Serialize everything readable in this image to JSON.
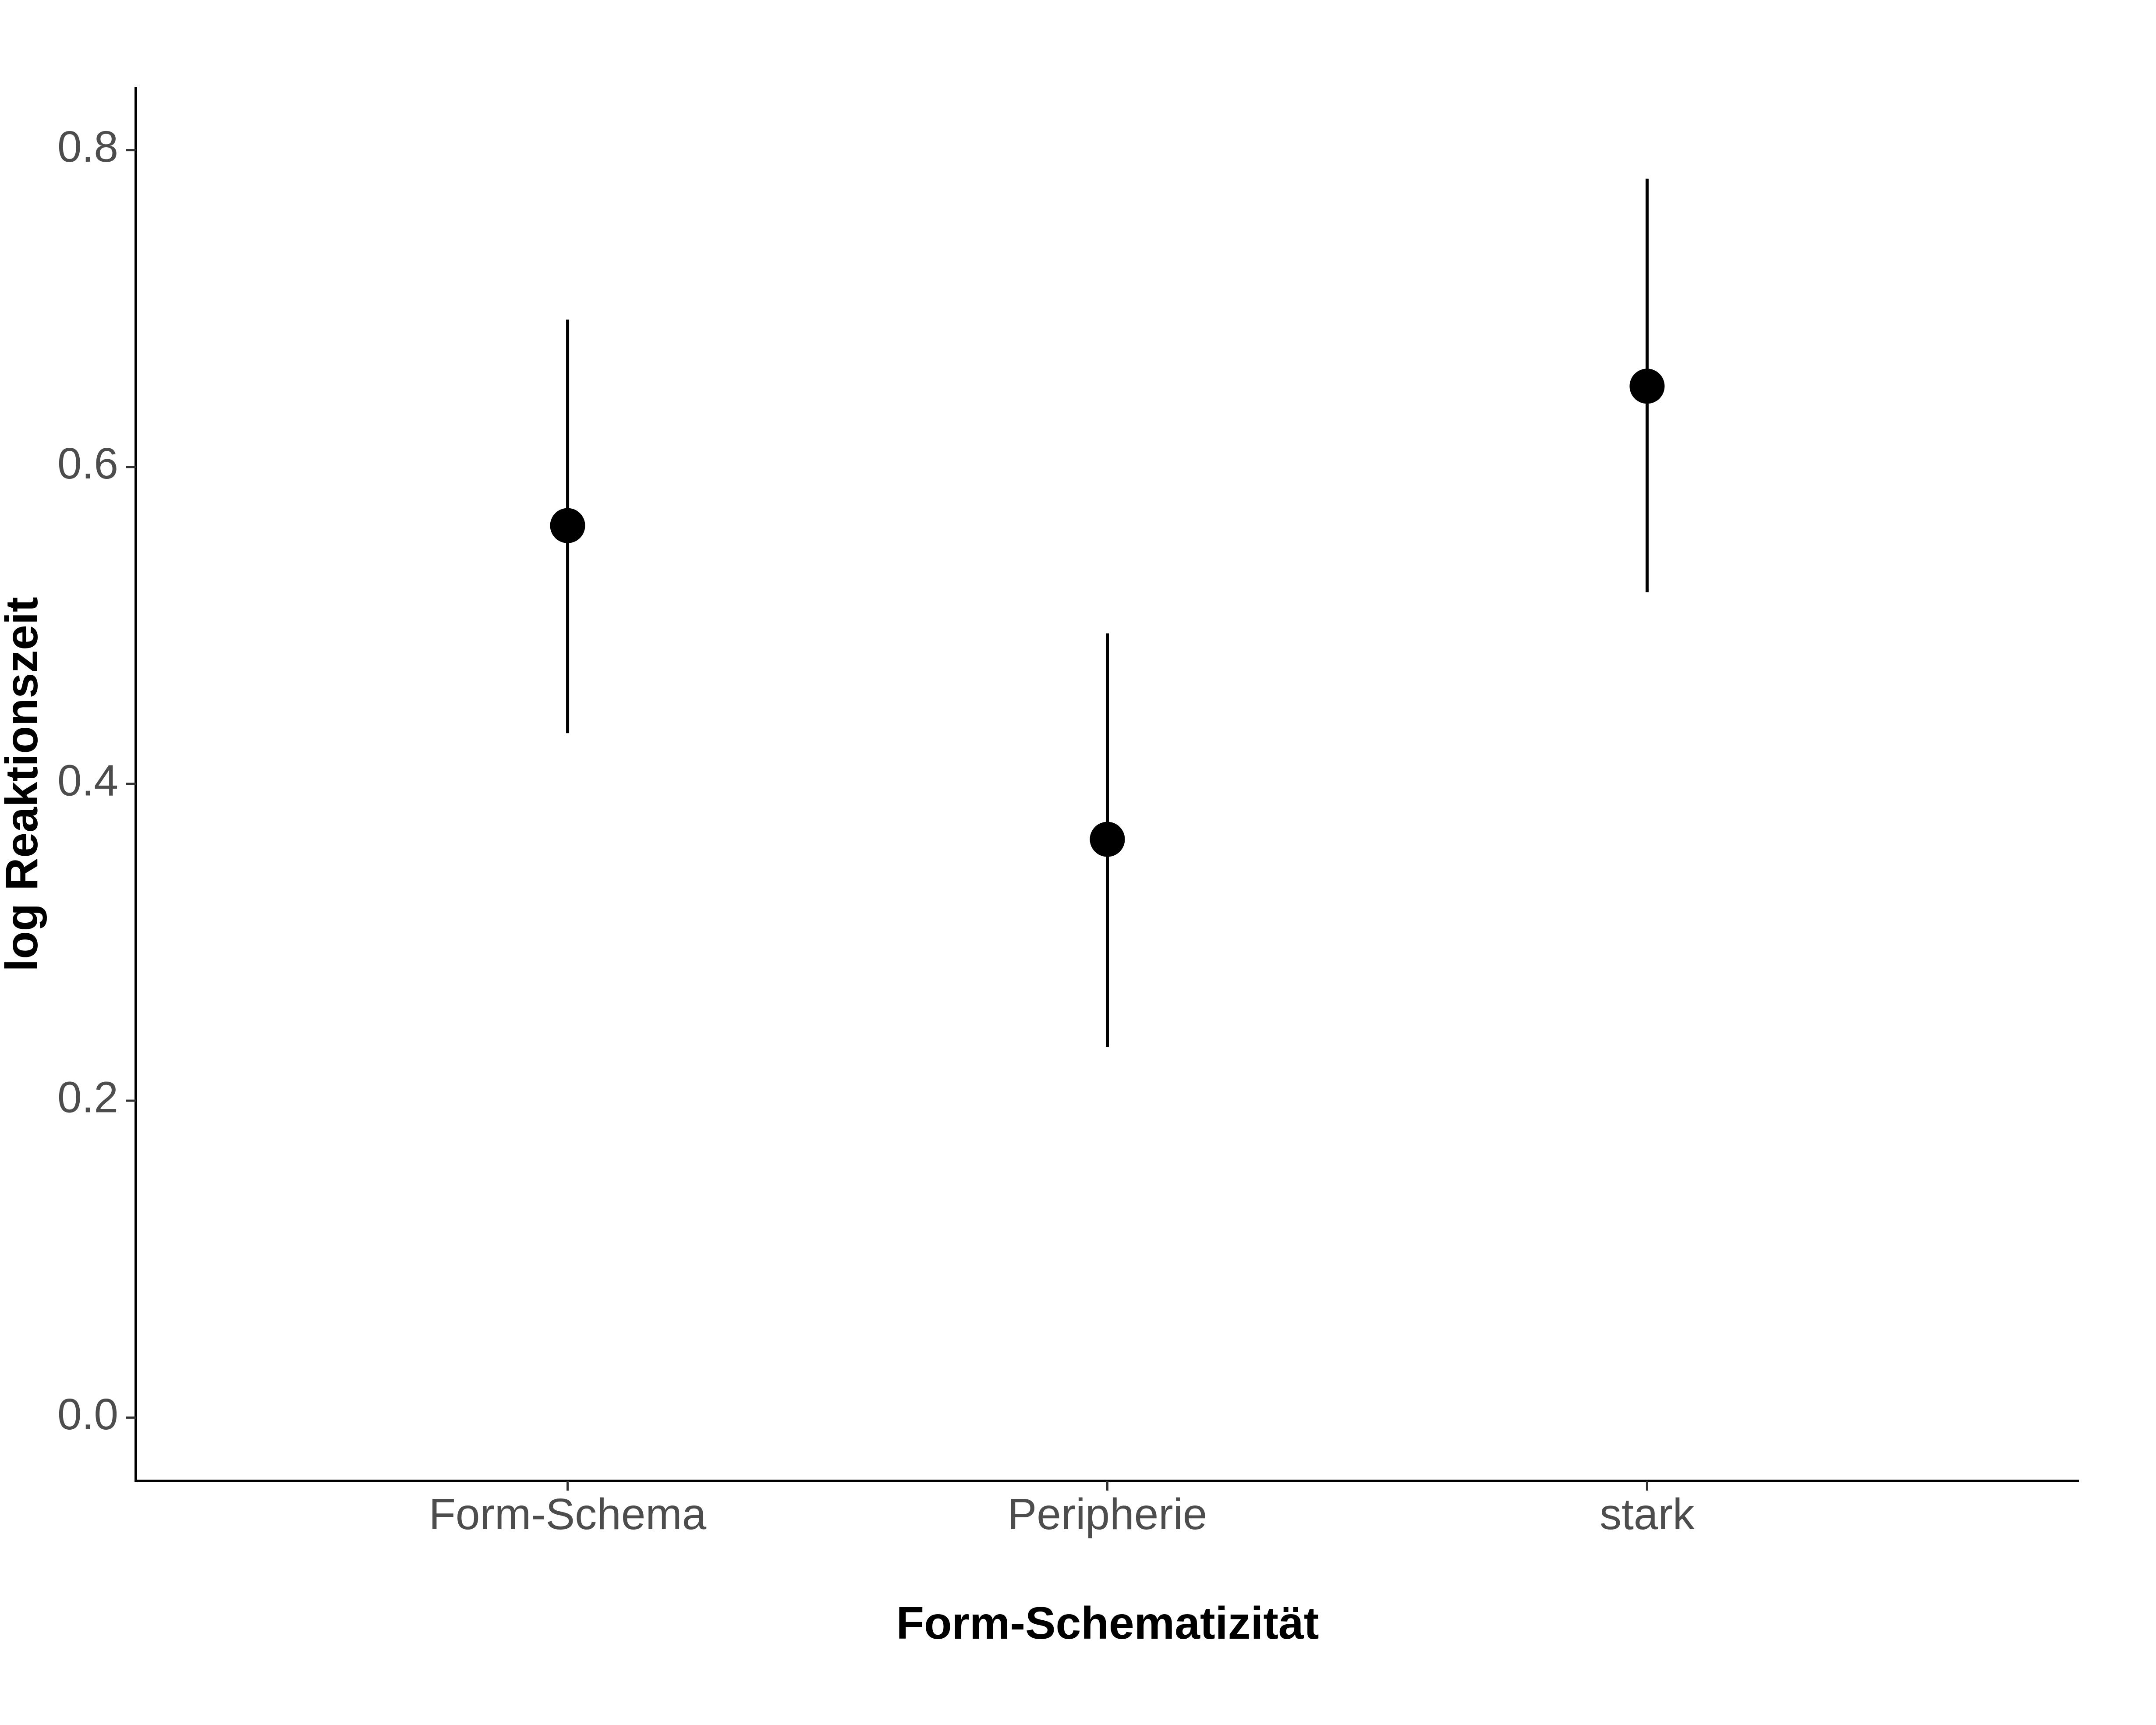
{
  "chart_data": {
    "type": "errorbar",
    "xlabel": "Form-Schematizität",
    "ylabel": "log Reaktionszeit",
    "categories": [
      "Form-Schema",
      "Peripherie",
      "stark"
    ],
    "points": [
      {
        "category": "Form-Schema",
        "value": 0.563,
        "lower": 0.432,
        "upper": 0.693
      },
      {
        "category": "Peripherie",
        "value": 0.365,
        "lower": 0.234,
        "upper": 0.495
      },
      {
        "category": "stark",
        "value": 0.651,
        "lower": 0.521,
        "upper": 0.782
      }
    ],
    "yticks": [
      "0.0",
      "0.2",
      "0.4",
      "0.6",
      "0.8"
    ],
    "ylim": [
      -0.04,
      0.84
    ],
    "grid": false,
    "legend": "none",
    "point_color": "#000000"
  }
}
